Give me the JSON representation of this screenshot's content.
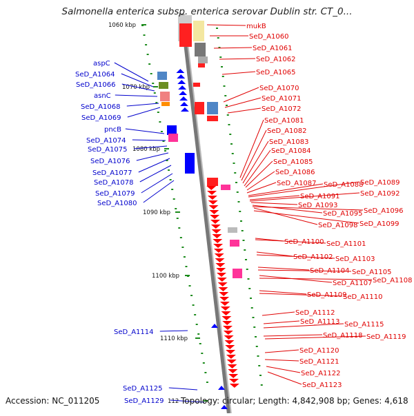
{
  "title": "Salmonella enterica subsp. enterica serovar Dublin str. CT_0...",
  "accession": "Accession: NC_011205",
  "topology": "Topology: circular; Length: 4,842,908 bp; Genes: 4,618",
  "colors": {
    "forward": "#ff0000",
    "reverse": "#0000ff",
    "backbone": "#888888",
    "tick": "#1a8a1a",
    "label_forward": "#e00000",
    "label_reverse": "#0000cc"
  },
  "ticks": [
    "1060 kbp",
    "1070 kbp",
    "1080 kbp",
    "1090 kbp",
    "1100 kbp",
    "1110 kbp",
    "112"
  ],
  "reverse_labels": [
    "aspC",
    "SeD_A1064",
    "SeD_A1066",
    "asnC",
    "SeD_A1068",
    "SeD_A1069",
    "pncB",
    "SeD_A1074",
    "SeD_A1075",
    "SeD_A1076",
    "SeD_A1077",
    "SeD_A1078",
    "SeD_A1079",
    "SeD_A1080",
    "SeD_A1114",
    "SeD_A1125",
    "SeD_A1129"
  ],
  "forward_labels": [
    "mukB",
    "SeD_A1060",
    "SeD_A1061",
    "SeD_A1062",
    "SeD_A1065",
    "SeD_A1070",
    "SeD_A1071",
    "SeD_A1072",
    "SeD_A1081",
    "SeD_A1082",
    "SeD_A1083",
    "SeD_A1084",
    "SeD_A1085",
    "SeD_A1086",
    "SeD_A1087",
    "SeD_A1088",
    "SeD_A1089",
    "SeD_A1091",
    "SeD_A1092",
    "SeD_A1093",
    "SeD_A1095",
    "SeD_A1096",
    "SeD_A1098",
    "SeD_A1099",
    "SeD_A1100",
    "SeD_A1101",
    "SeD_A1102",
    "SeD_A1103",
    "SeD_A1104",
    "SeD_A1105",
    "SeD_A1107",
    "SeD_A1108",
    "SeD_A1109",
    "SeD_A1110",
    "SeD_A1112",
    "SeD_A1113",
    "SeD_A1115",
    "SeD_A1118",
    "SeD_A1119",
    "SeD_A1120",
    "SeD_A1121",
    "SeD_A1122",
    "SeD_A1123"
  ]
}
